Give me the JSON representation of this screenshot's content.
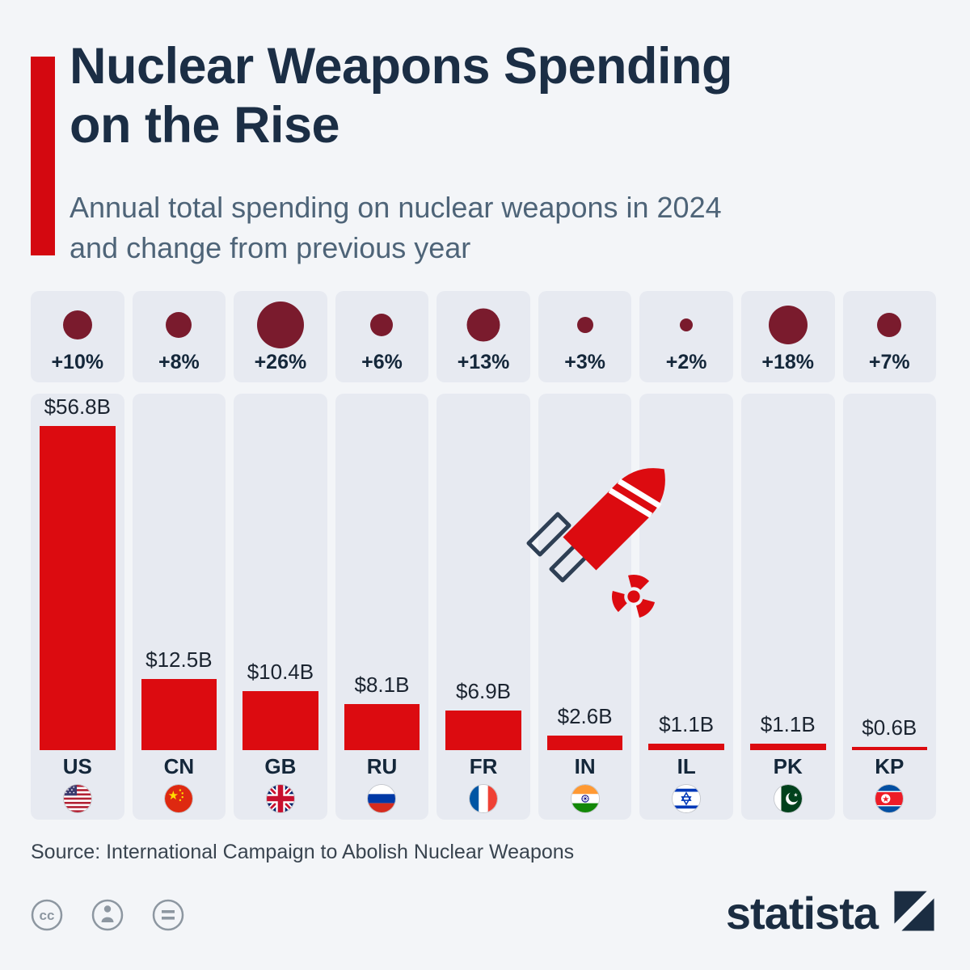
{
  "header": {
    "title_line1": "Nuclear Weapons Spending",
    "title_line2": "on the Rise",
    "subtitle_line1": "Annual total spending on nuclear weapons in 2024",
    "subtitle_line2": "and change from previous year"
  },
  "chart_data": {
    "type": "bar",
    "title": "Nuclear Weapons Spending on the Rise",
    "subtitle": "Annual total spending on nuclear weapons in 2024 and change from previous year",
    "categories": [
      "US",
      "CN",
      "GB",
      "RU",
      "FR",
      "IN",
      "IL",
      "PK",
      "KP"
    ],
    "series": [
      {
        "name": "Annual spending 2024 (USD billions)",
        "values": [
          56.8,
          12.5,
          10.4,
          8.1,
          6.9,
          2.6,
          1.1,
          1.1,
          0.6
        ]
      },
      {
        "name": "Change from previous year (percent)",
        "values": [
          10,
          8,
          26,
          6,
          13,
          3,
          2,
          18,
          7
        ]
      }
    ],
    "bar_labels": [
      "$56.8B",
      "$12.5B",
      "$10.4B",
      "$8.1B",
      "$6.9B",
      "$2.6B",
      "$1.1B",
      "$1.1B",
      "$0.6B"
    ],
    "change_labels": [
      "+10%",
      "+8%",
      "+26%",
      "+6%",
      "+13%",
      "+3%",
      "+2%",
      "+18%",
      "+7%"
    ],
    "ylim": [
      0,
      56.8
    ],
    "legend_position": "none",
    "grid": false,
    "bar_color": "#dc0b10",
    "bubble_color": "#7a1b2d"
  },
  "colors": {
    "background": "#f3f5f8",
    "panel": "#e7eaf1",
    "accent_red": "#d40810",
    "bar_red": "#dc0b10",
    "bubble_maroon": "#7a1b2d",
    "title_navy": "#1b2e45",
    "subtitle_gray": "#4e6478"
  },
  "footer": {
    "source": "Source: International Campaign to Abolish Nuclear Weapons",
    "brand": "statista"
  }
}
